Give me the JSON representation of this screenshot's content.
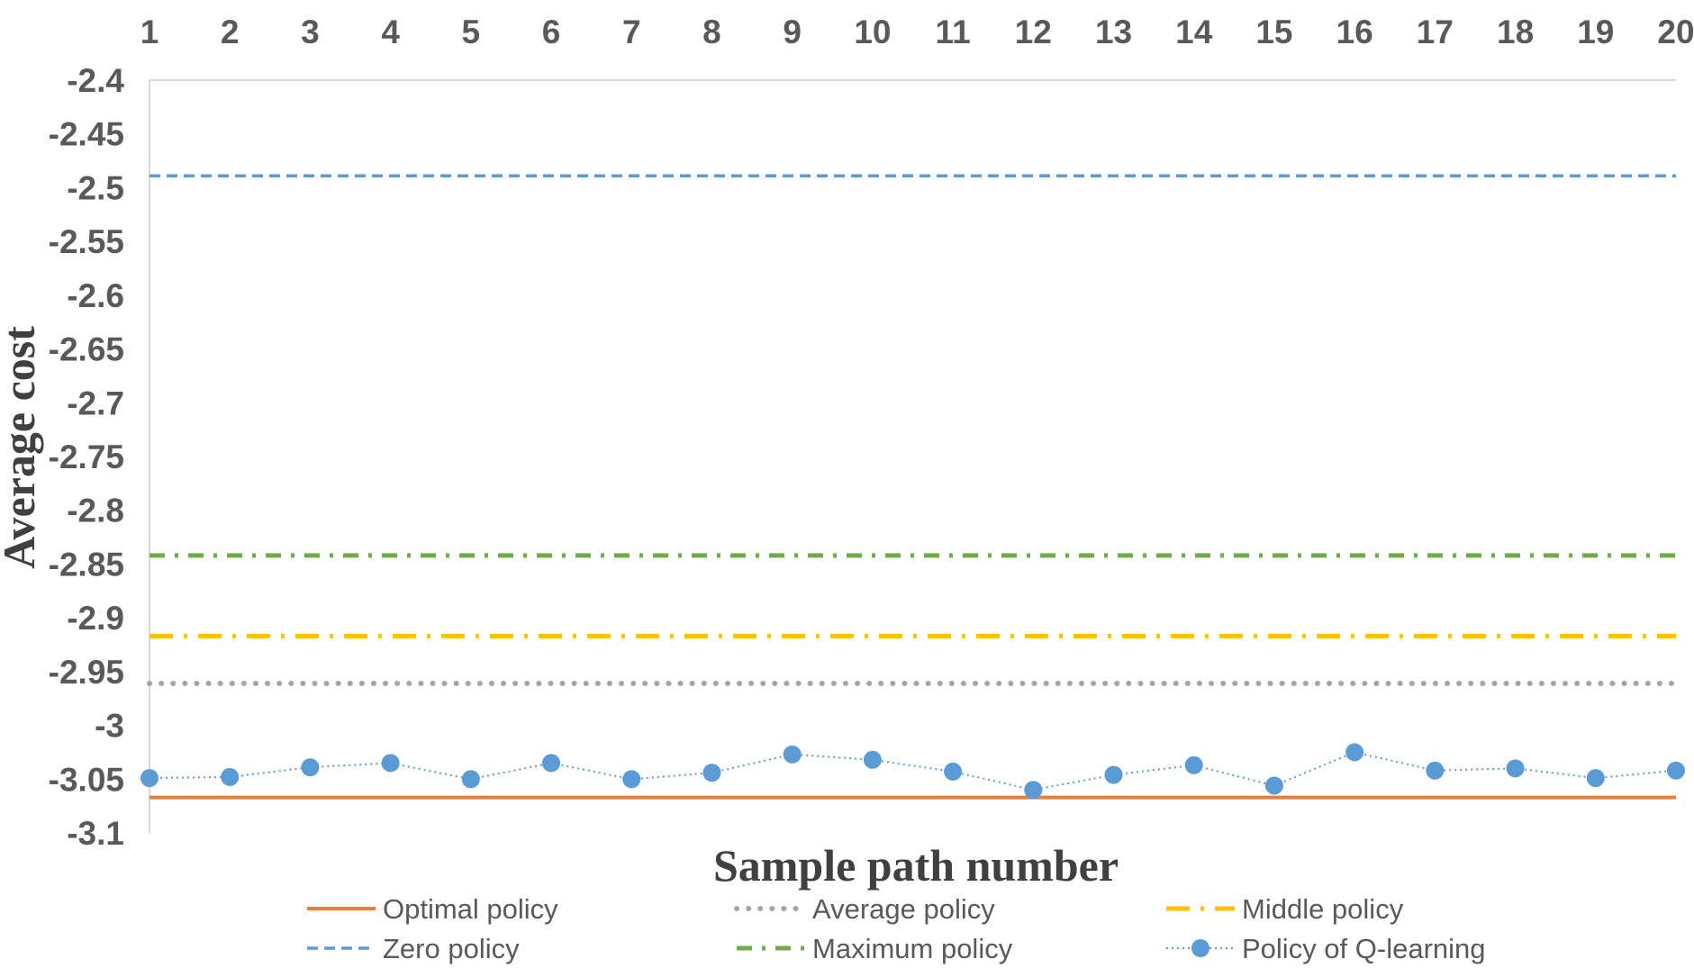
{
  "chart_data": {
    "type": "line",
    "title": "",
    "xlabel": "Sample path number",
    "ylabel": "Average cost",
    "x": [
      1,
      2,
      3,
      4,
      5,
      6,
      7,
      8,
      9,
      10,
      11,
      12,
      13,
      14,
      15,
      16,
      17,
      18,
      19,
      20
    ],
    "x_tick_labels": [
      "1",
      "2",
      "3",
      "4",
      "5",
      "6",
      "7",
      "8",
      "9",
      "10",
      "11",
      "12",
      "13",
      "14",
      "15",
      "16",
      "17",
      "18",
      "19",
      "20"
    ],
    "x_axis_position": "top",
    "ylim": [
      -3.1,
      -2.4
    ],
    "y_ticks": [
      -2.4,
      -2.45,
      -2.5,
      -2.55,
      -2.6,
      -2.65,
      -2.7,
      -2.75,
      -2.8,
      -2.85,
      -2.9,
      -2.95,
      -3,
      -3.05,
      -3.1
    ],
    "y_tick_labels": [
      "-2.4",
      "-2.45",
      "-2.5",
      "-2.55",
      "-2.6",
      "-2.65",
      "-2.7",
      "-2.75",
      "-2.8",
      "-2.85",
      "-2.9",
      "-2.95",
      "-3",
      "-3.05",
      "-3.1"
    ],
    "grid": false,
    "legend_position": "bottom",
    "series": [
      {
        "name": "Optimal policy",
        "color": "#ED7D31",
        "style": "solid",
        "values": [
          -3.067,
          -3.067,
          -3.067,
          -3.067,
          -3.067,
          -3.067,
          -3.067,
          -3.067,
          -3.067,
          -3.067,
          -3.067,
          -3.067,
          -3.067,
          -3.067,
          -3.067,
          -3.067,
          -3.067,
          -3.067,
          -3.067,
          -3.067
        ]
      },
      {
        "name": "Average policy",
        "color": "#A5A5A5",
        "style": "dotted",
        "values": [
          -2.961,
          -2.961,
          -2.961,
          -2.961,
          -2.961,
          -2.961,
          -2.961,
          -2.961,
          -2.961,
          -2.961,
          -2.961,
          -2.961,
          -2.961,
          -2.961,
          -2.961,
          -2.961,
          -2.961,
          -2.961,
          -2.961,
          -2.961
        ]
      },
      {
        "name": "Middle policy",
        "color": "#FFC000",
        "style": "long-dash-dot",
        "values": [
          -2.917,
          -2.917,
          -2.917,
          -2.917,
          -2.917,
          -2.917,
          -2.917,
          -2.917,
          -2.917,
          -2.917,
          -2.917,
          -2.917,
          -2.917,
          -2.917,
          -2.917,
          -2.917,
          -2.917,
          -2.917,
          -2.917,
          -2.917
        ]
      },
      {
        "name": "Zero policy",
        "color": "#5B9BD5",
        "style": "dashed",
        "values": [
          -2.489,
          -2.489,
          -2.489,
          -2.489,
          -2.489,
          -2.489,
          -2.489,
          -2.489,
          -2.489,
          -2.489,
          -2.489,
          -2.489,
          -2.489,
          -2.489,
          -2.489,
          -2.489,
          -2.489,
          -2.489,
          -2.489,
          -2.489
        ]
      },
      {
        "name": "Maximum policy",
        "color": "#70AD47",
        "style": "dash-dot",
        "values": [
          -2.842,
          -2.842,
          -2.842,
          -2.842,
          -2.842,
          -2.842,
          -2.842,
          -2.842,
          -2.842,
          -2.842,
          -2.842,
          -2.842,
          -2.842,
          -2.842,
          -2.842,
          -2.842,
          -2.842,
          -2.842,
          -2.842,
          -2.842
        ]
      },
      {
        "name": "Policy of Q-learning",
        "color": "#5B9BD5",
        "style": "dotted-markers",
        "values": [
          -3.049,
          -3.048,
          -3.039,
          -3.035,
          -3.05,
          -3.035,
          -3.05,
          -3.044,
          -3.027,
          -3.032,
          -3.043,
          -3.06,
          -3.046,
          -3.037,
          -3.056,
          -3.025,
          -3.042,
          -3.04,
          -3.049,
          -3.042
        ]
      }
    ]
  }
}
